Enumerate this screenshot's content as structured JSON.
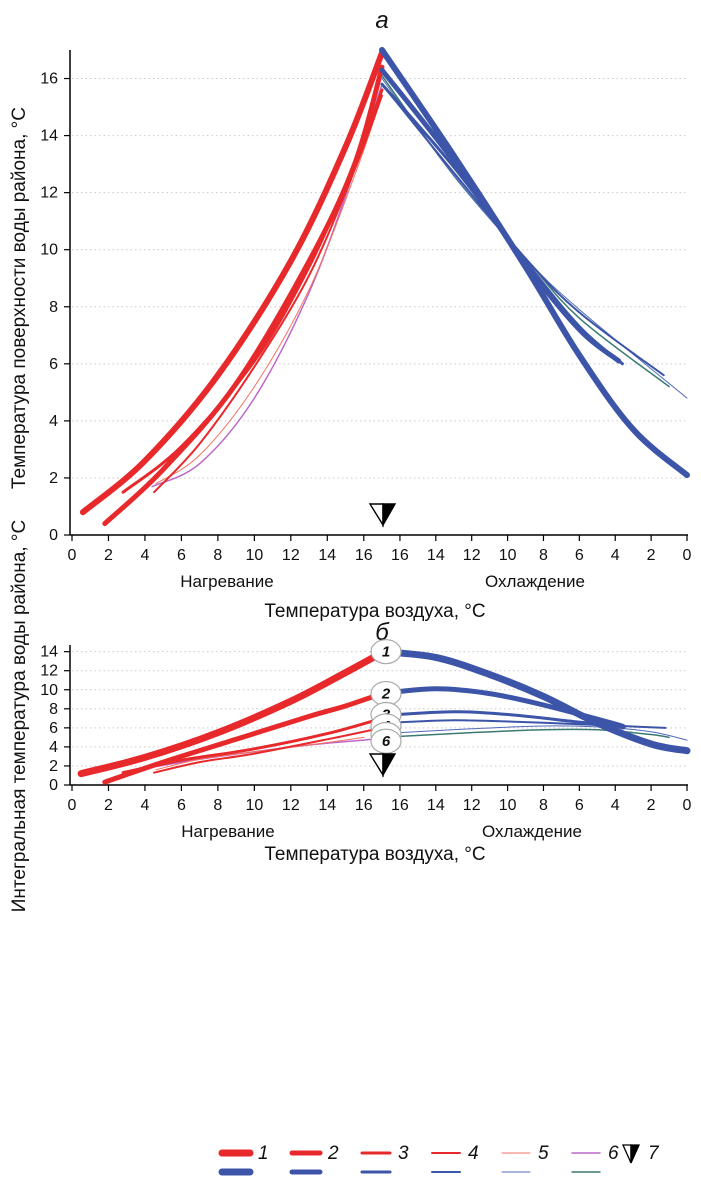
{
  "chart_data": [
    {
      "type": "line",
      "panel_label": "а",
      "ylabel": "Температура   поверхности воды района, °С",
      "xlabel": "Температура воздуха, °С",
      "x_tick_labels": [
        "0",
        "2",
        "4",
        "6",
        "8",
        "10",
        "12",
        "14",
        "16",
        "16",
        "14",
        "12",
        "10",
        "8",
        "6",
        "4",
        "2",
        "0"
      ],
      "phase_labels": [
        "Нагревание",
        "Охлаждение"
      ],
      "ylim": [
        0,
        17
      ],
      "y_ticks": [
        0,
        2,
        4,
        6,
        8,
        10,
        12,
        14,
        16
      ],
      "grid": "horizontal dotted",
      "marker_symbol": "7",
      "x_note": "axis runs 0→17 (Нагревание) then 17→0 (Охлаждение); x values below are in printed air-temperature units",
      "heating": [
        {
          "line": 1,
          "color": "#e8292b",
          "width": 6,
          "points": [
            [
              0.6,
              0.8
            ],
            [
              4,
              2.6
            ],
            [
              8,
              5.6
            ],
            [
              12,
              9.6
            ],
            [
              15,
              13.6
            ],
            [
              17,
              16.9
            ]
          ]
        },
        {
          "line": 2,
          "color": "#e8292b",
          "width": 5,
          "points": [
            [
              1.8,
              0.4
            ],
            [
              5,
              2.3
            ],
            [
              9,
              5.3
            ],
            [
              13,
              9.6
            ],
            [
              15.5,
              13.0
            ],
            [
              17,
              16.4
            ]
          ]
        },
        {
          "line": 3,
          "color": "#e8292b",
          "width": 3,
          "points": [
            [
              2.8,
              1.5
            ],
            [
              6,
              3.1
            ],
            [
              10,
              6.1
            ],
            [
              13,
              9.4
            ],
            [
              15.5,
              13.0
            ],
            [
              17,
              15.6
            ]
          ]
        },
        {
          "line": 4,
          "color": "#e8292b",
          "width": 2,
          "points": [
            [
              4.5,
              1.5
            ],
            [
              7,
              3.2
            ],
            [
              10,
              5.9
            ],
            [
              13,
              9.1
            ],
            [
              15.5,
              12.8
            ],
            [
              17,
              15.4
            ]
          ]
        },
        {
          "line": 5,
          "color": "#f37060",
          "width": 1,
          "points": [
            [
              4.6,
              1.8
            ],
            [
              7,
              2.8
            ],
            [
              10,
              5.2
            ],
            [
              13,
              8.6
            ],
            [
              15.5,
              12.6
            ],
            [
              17,
              15.4
            ]
          ]
        },
        {
          "line": 6,
          "color": "#bb66c8",
          "width": 1.5,
          "points": [
            [
              4.4,
              1.7
            ],
            [
              7,
              2.5
            ],
            [
              10,
              4.8
            ],
            [
              13,
              8.5
            ],
            [
              15.5,
              12.8
            ],
            [
              17,
              15.8
            ]
          ]
        }
      ],
      "cooling": [
        {
          "line": 1,
          "color": "#3c55a8",
          "width": 6,
          "points": [
            [
              17,
              17.0
            ],
            [
              13,
              13.3
            ],
            [
              9,
              9.4
            ],
            [
              6,
              6.3
            ],
            [
              3,
              3.7
            ],
            [
              0,
              2.1
            ]
          ]
        },
        {
          "line": 2,
          "color": "#3c55a8",
          "width": 5,
          "points": [
            [
              17,
              16.3
            ],
            [
              13,
              13.1
            ],
            [
              9,
              9.5
            ],
            [
              6,
              7.2
            ],
            [
              3.8,
              6.1
            ]
          ]
        },
        {
          "line": 3,
          "color": "#3c55a8",
          "width": 3,
          "points": [
            [
              17,
              15.8
            ],
            [
              13,
              12.9
            ],
            [
              9,
              9.6
            ],
            [
              6,
              7.3
            ],
            [
              3.6,
              6.0
            ]
          ]
        },
        {
          "line": 4,
          "color": "#3c55a8",
          "width": 2,
          "points": [
            [
              17,
              15.8
            ],
            [
              13,
              12.7
            ],
            [
              9,
              9.7
            ],
            [
              6,
              7.8
            ],
            [
              1.3,
              5.6
            ]
          ]
        },
        {
          "line": 5,
          "color": "#4f6ab8",
          "width": 1,
          "points": [
            [
              17,
              16.0
            ],
            [
              13,
              12.6
            ],
            [
              9,
              9.7
            ],
            [
              6,
              7.9
            ],
            [
              0,
              4.8
            ]
          ]
        },
        {
          "line": 6,
          "color": "#3b7a70",
          "width": 1.5,
          "points": [
            [
              17,
              16.1
            ],
            [
              13,
              12.6
            ],
            [
              9,
              9.7
            ],
            [
              6,
              7.6
            ],
            [
              1,
              5.2
            ]
          ]
        }
      ]
    },
    {
      "type": "line",
      "panel_label": "б",
      "ylabel": "Интегральная  температура  воды района, °С",
      "xlabel": "Температура воздуха, °С",
      "x_tick_labels": [
        "0",
        "2",
        "4",
        "6",
        "8",
        "10",
        "12",
        "14",
        "16",
        "16",
        "14",
        "12",
        "10",
        "8",
        "6",
        "4",
        "2",
        "0"
      ],
      "phase_labels": [
        "Нагревание",
        "Охлаждение"
      ],
      "ylim": [
        0,
        14.7
      ],
      "y_ticks": [
        0,
        2,
        4,
        6,
        8,
        10,
        12,
        14
      ],
      "grid": "horizontal dotted",
      "marker_symbol": "7",
      "callouts": [
        {
          "label": "1",
          "y": 14.0
        },
        {
          "label": "2",
          "y": 9.6
        },
        {
          "label": "3",
          "y": 7.4
        },
        {
          "label": "4",
          "y": 6.2
        },
        {
          "label": "5",
          "y": 5.3
        },
        {
          "label": "6",
          "y": 4.6
        }
      ],
      "heating": [
        {
          "line": 1,
          "color": "#e8292b",
          "width": 7,
          "points": [
            [
              0.5,
              1.2
            ],
            [
              4,
              2.9
            ],
            [
              8,
              5.5
            ],
            [
              12,
              8.8
            ],
            [
              15,
              11.8
            ],
            [
              17,
              13.9
            ]
          ]
        },
        {
          "line": 2,
          "color": "#e8292b",
          "width": 5,
          "points": [
            [
              1.8,
              0.3
            ],
            [
              5,
              2.4
            ],
            [
              9,
              4.8
            ],
            [
              13,
              7.2
            ],
            [
              15,
              8.3
            ],
            [
              17,
              9.6
            ]
          ]
        },
        {
          "line": 3,
          "color": "#e8292b",
          "width": 3,
          "points": [
            [
              2.8,
              1.3
            ],
            [
              6,
              2.6
            ],
            [
              10,
              3.8
            ],
            [
              14,
              5.4
            ],
            [
              17,
              7.0
            ]
          ]
        },
        {
          "line": 4,
          "color": "#e8292b",
          "width": 2,
          "points": [
            [
              4.5,
              1.3
            ],
            [
              7,
              2.4
            ],
            [
              10,
              3.3
            ],
            [
              14,
              4.8
            ],
            [
              17,
              6.0
            ]
          ]
        },
        {
          "line": 5,
          "color": "#f37060",
          "width": 1,
          "points": [
            [
              4.6,
              1.6
            ],
            [
              7,
              2.7
            ],
            [
              10,
              3.5
            ],
            [
              13,
              4.2
            ],
            [
              16,
              5.0
            ]
          ]
        },
        {
          "line": 6,
          "color": "#bb66c8",
          "width": 1.5,
          "points": [
            [
              4.5,
              1.9
            ],
            [
              7,
              2.7
            ],
            [
              10,
              3.5
            ],
            [
              13,
              4.2
            ],
            [
              16.5,
              4.8
            ]
          ]
        }
      ],
      "cooling": [
        {
          "line": 1,
          "color": "#3c55a8",
          "width": 7,
          "points": [
            [
              17,
              14.0
            ],
            [
              14,
              13.4
            ],
            [
              11,
              11.6
            ],
            [
              8,
              9.3
            ],
            [
              5,
              6.5
            ],
            [
              2,
              4.3
            ],
            [
              0,
              3.6
            ]
          ]
        },
        {
          "line": 2,
          "color": "#3c55a8",
          "width": 5,
          "points": [
            [
              17,
              9.6
            ],
            [
              14,
              10.1
            ],
            [
              11,
              9.6
            ],
            [
              8,
              8.4
            ],
            [
              4,
              6.4
            ],
            [
              3.6,
              6.1
            ]
          ]
        },
        {
          "line": 3,
          "color": "#3c55a8",
          "width": 3,
          "points": [
            [
              17,
              7.3
            ],
            [
              13,
              7.7
            ],
            [
              10,
              7.4
            ],
            [
              6,
              6.6
            ],
            [
              3.6,
              6.1
            ]
          ]
        },
        {
          "line": 4,
          "color": "#3c55a8",
          "width": 2,
          "points": [
            [
              17,
              6.5
            ],
            [
              13,
              6.8
            ],
            [
              9,
              6.6
            ],
            [
              5,
              6.3
            ],
            [
              1.2,
              6.0
            ]
          ]
        },
        {
          "line": 5,
          "color": "#4f6ab8",
          "width": 1,
          "points": [
            [
              16,
              5.5
            ],
            [
              12,
              5.9
            ],
            [
              8,
              6.2
            ],
            [
              5,
              6.1
            ],
            [
              2,
              5.6
            ],
            [
              0,
              4.7
            ]
          ]
        },
        {
          "line": 6,
          "color": "#3b7a70",
          "width": 1.5,
          "points": [
            [
              16,
              5.1
            ],
            [
              12,
              5.5
            ],
            [
              8,
              5.8
            ],
            [
              5,
              5.8
            ],
            [
              2,
              5.3
            ],
            [
              1,
              5.0
            ]
          ]
        }
      ]
    }
  ],
  "legend": {
    "items": [
      {
        "label": "1",
        "heating_color": "#e8292b",
        "cooling_color": "#3c55a8",
        "width": 7
      },
      {
        "label": "2",
        "heating_color": "#e8292b",
        "cooling_color": "#3c55a8",
        "width": 5
      },
      {
        "label": "3",
        "heating_color": "#e8292b",
        "cooling_color": "#3c55a8",
        "width": 3
      },
      {
        "label": "4",
        "heating_color": "#e8292b",
        "cooling_color": "#3c55a8",
        "width": 2
      },
      {
        "label": "5",
        "heating_color": "#f37060",
        "cooling_color": "#4f6ab8",
        "width": 1
      },
      {
        "label": "6",
        "heating_color": "#bb66c8",
        "cooling_color": "#3b7a70",
        "width": 1.5
      }
    ],
    "marker_label": "7"
  }
}
